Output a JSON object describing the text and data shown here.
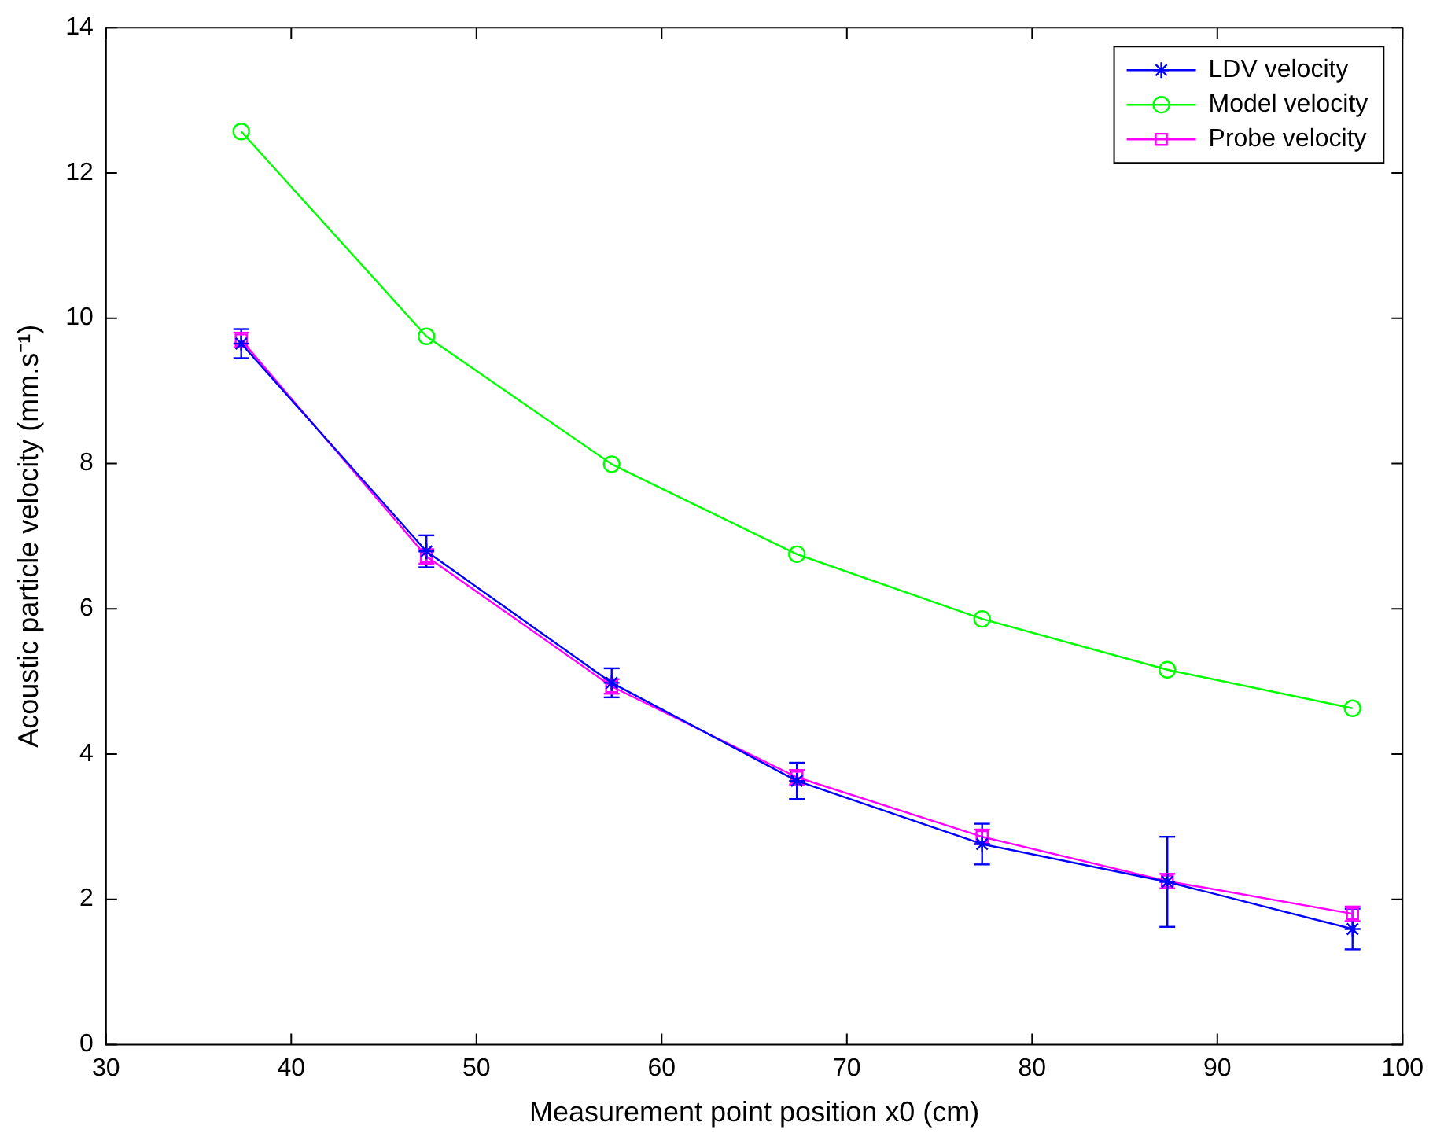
{
  "chart_data": {
    "type": "line",
    "xlabel": "Measurement point position x0 (cm)",
    "ylabel": "Acoustic particle velocity (mm.s⁻¹)",
    "x": [
      37.3,
      47.3,
      57.3,
      67.3,
      77.3,
      87.3,
      97.3
    ],
    "series": [
      {
        "name": "LDV velocity",
        "color": "#0000ff",
        "marker": "cross",
        "values": [
          9.65,
          6.79,
          4.98,
          3.63,
          2.76,
          2.24,
          1.59
        ],
        "errors": [
          0.2,
          0.22,
          0.2,
          0.25,
          0.28,
          0.62,
          0.28
        ]
      },
      {
        "name": "Model velocity",
        "color": "#00ff00",
        "marker": "circle",
        "values": [
          12.57,
          9.75,
          7.99,
          6.75,
          5.86,
          5.16,
          4.63
        ]
      },
      {
        "name": "Probe velocity",
        "color": "#ff00ff",
        "marker": "square",
        "values": [
          9.7,
          6.72,
          4.93,
          3.68,
          2.86,
          2.25,
          1.8
        ],
        "errors": [
          0.1,
          0.1,
          0.1,
          0.1,
          0.1,
          0.1,
          0.1
        ]
      }
    ],
    "xlim": [
      30,
      100
    ],
    "xticks": [
      30,
      40,
      50,
      60,
      70,
      80,
      90,
      100
    ],
    "ylim": [
      0,
      14
    ],
    "yticks": [
      0,
      2,
      4,
      6,
      8,
      10,
      12,
      14
    ],
    "grid": false,
    "legend": "top right",
    "line_style": "solid"
  }
}
